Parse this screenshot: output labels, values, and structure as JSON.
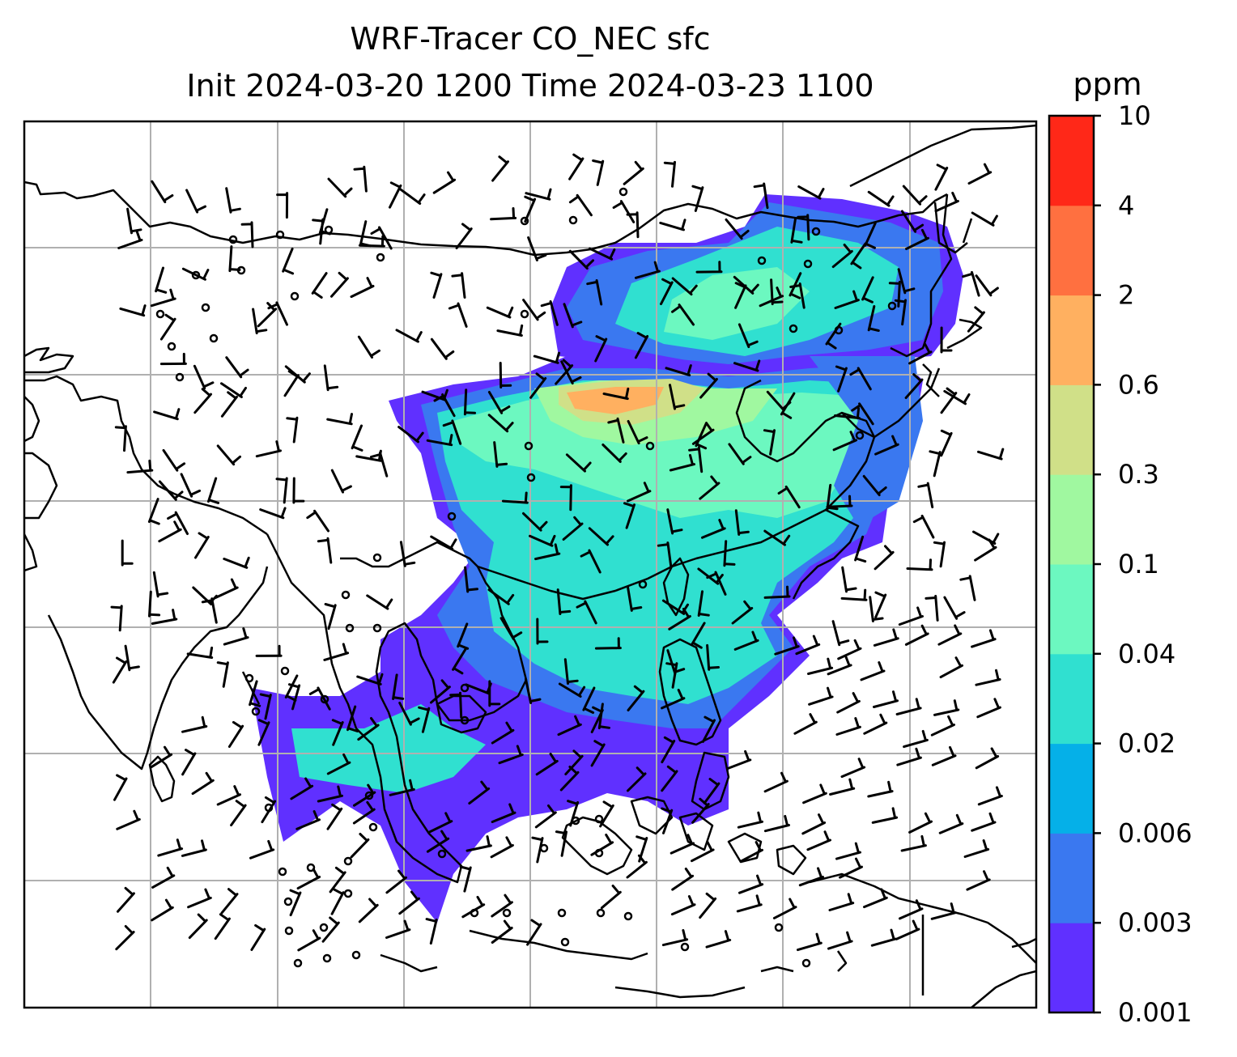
{
  "figure": {
    "title_line1": "WRF-Tracer CO_NEC sfc",
    "title_line2": "Init 2024-03-20 1200 Time 2024-03-23 1100"
  },
  "colorbar": {
    "unit": "ppm",
    "levels": [
      "0.001",
      "0.003",
      "0.006",
      "0.02",
      "0.04",
      "0.1",
      "0.3",
      "0.6",
      "2",
      "4",
      "10"
    ],
    "colors": [
      "#6030ff",
      "#3a78f0",
      "#05b0e8",
      "#30e0d0",
      "#6cf8c0",
      "#a0f8a0",
      "#d0e088",
      "#ffb060",
      "#ff7040",
      "#ff2818"
    ]
  },
  "map": {
    "gridlines": true,
    "field_colors": {
      "lowest": "#6030ff",
      "low": "#3a78f0",
      "mid": "#30e0d0",
      "high": "#6cf8c0",
      "higher": "#a0f8a0",
      "peak": "#d0e088",
      "max": "#ffb060"
    },
    "coastline_color": "#000000",
    "grid_color": "#b0b0b0",
    "wind_barbs": "black",
    "calm_marker": "circle"
  }
}
